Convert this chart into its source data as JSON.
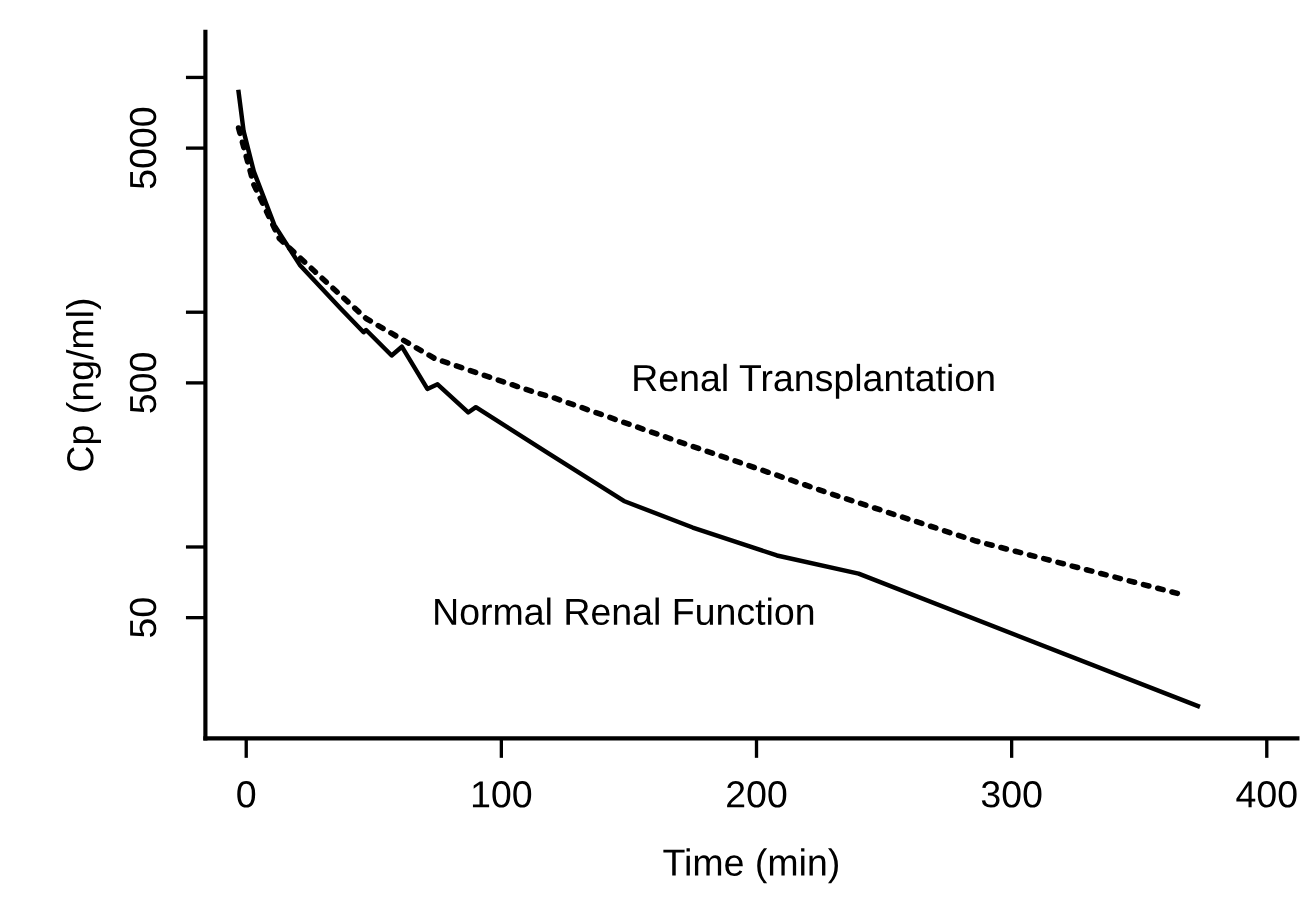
{
  "chart_data": {
    "type": "line",
    "xlabel": "Time (min)",
    "ylabel": "Cp (ng/ml)",
    "log": "y",
    "xlim": [
      -16,
      412
    ],
    "xticks": [
      0,
      100,
      200,
      300,
      400
    ],
    "ylim": [
      15.3,
      15660
    ],
    "yticks": [
      {
        "value": 10000,
        "label": null
      },
      5000,
      {
        "value": 1000,
        "label": null
      },
      500,
      {
        "value": 100,
        "label": null
      },
      50
    ],
    "grid": false,
    "legend": false,
    "marker": "none",
    "series": [
      {
        "name": "Normal Renal Function",
        "color": "#000000",
        "line_style": "solid",
        "x": [
          -3,
          -1,
          3,
          11,
          21,
          37,
          46,
          47,
          57,
          61,
          71,
          75,
          87,
          90,
          118,
          148,
          175,
          208,
          240,
          373
        ],
        "values": [
          8680,
          5890,
          3970,
          2355,
          1590,
          1036,
          822,
          840,
          654,
          713,
          471,
          493,
          374,
          394,
          252,
          157,
          121,
          92,
          77,
          21
        ]
      },
      {
        "name": "Renal Transplantation",
        "color": "#000000",
        "line_style": "dotted",
        "x": [
          -3,
          3,
          13,
          27,
          47,
          74,
          113,
          120,
          175,
          231,
          286,
          366
        ],
        "values": [
          6090,
          3490,
          2060,
          1486,
          940,
          634,
          456,
          434,
          268,
          166,
          106,
          63
        ]
      }
    ]
  }
}
